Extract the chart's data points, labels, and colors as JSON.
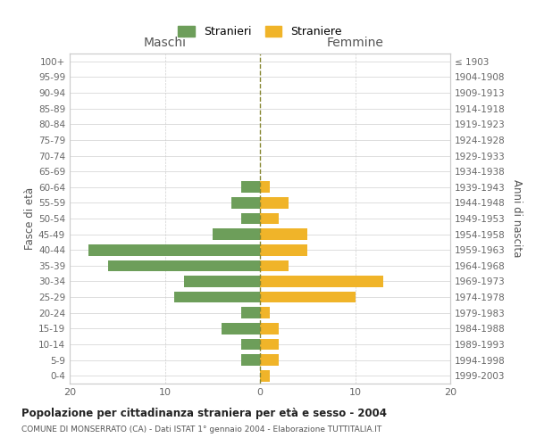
{
  "age_groups_bottom_to_top": [
    "0-4",
    "5-9",
    "10-14",
    "15-19",
    "20-24",
    "25-29",
    "30-34",
    "35-39",
    "40-44",
    "45-49",
    "50-54",
    "55-59",
    "60-64",
    "65-69",
    "70-74",
    "75-79",
    "80-84",
    "85-89",
    "90-94",
    "95-99",
    "100+"
  ],
  "birth_years_bottom_to_top": [
    "1999-2003",
    "1994-1998",
    "1989-1993",
    "1984-1988",
    "1979-1983",
    "1974-1978",
    "1969-1973",
    "1964-1968",
    "1959-1963",
    "1954-1958",
    "1949-1953",
    "1944-1948",
    "1939-1943",
    "1934-1938",
    "1929-1933",
    "1924-1928",
    "1919-1923",
    "1914-1918",
    "1909-1913",
    "1904-1908",
    "≤ 1903"
  ],
  "maschi_bottom_to_top": [
    0,
    2,
    2,
    4,
    2,
    9,
    8,
    16,
    18,
    5,
    2,
    3,
    2,
    0,
    0,
    0,
    0,
    0,
    0,
    0,
    0
  ],
  "femmine_bottom_to_top": [
    1,
    2,
    2,
    2,
    1,
    10,
    13,
    3,
    5,
    5,
    2,
    3,
    1,
    0,
    0,
    0,
    0,
    0,
    0,
    0,
    0
  ],
  "maschi_color": "#6d9e5a",
  "femmine_color": "#f0b429",
  "title": "Popolazione per cittadinanza straniera per età e sesso - 2004",
  "subtitle": "COMUNE DI MONSERRATO (CA) - Dati ISTAT 1° gennaio 2004 - Elaborazione TUTTITALIA.IT",
  "legend_maschi": "Stranieri",
  "legend_femmine": "Straniere",
  "xlabel_left": "Maschi",
  "xlabel_right": "Femmine",
  "ylabel_left": "Fasce di età",
  "ylabel_right": "Anni di nascita",
  "xlim": 20,
  "background_color": "#ffffff",
  "grid_color": "#d0d0d0"
}
